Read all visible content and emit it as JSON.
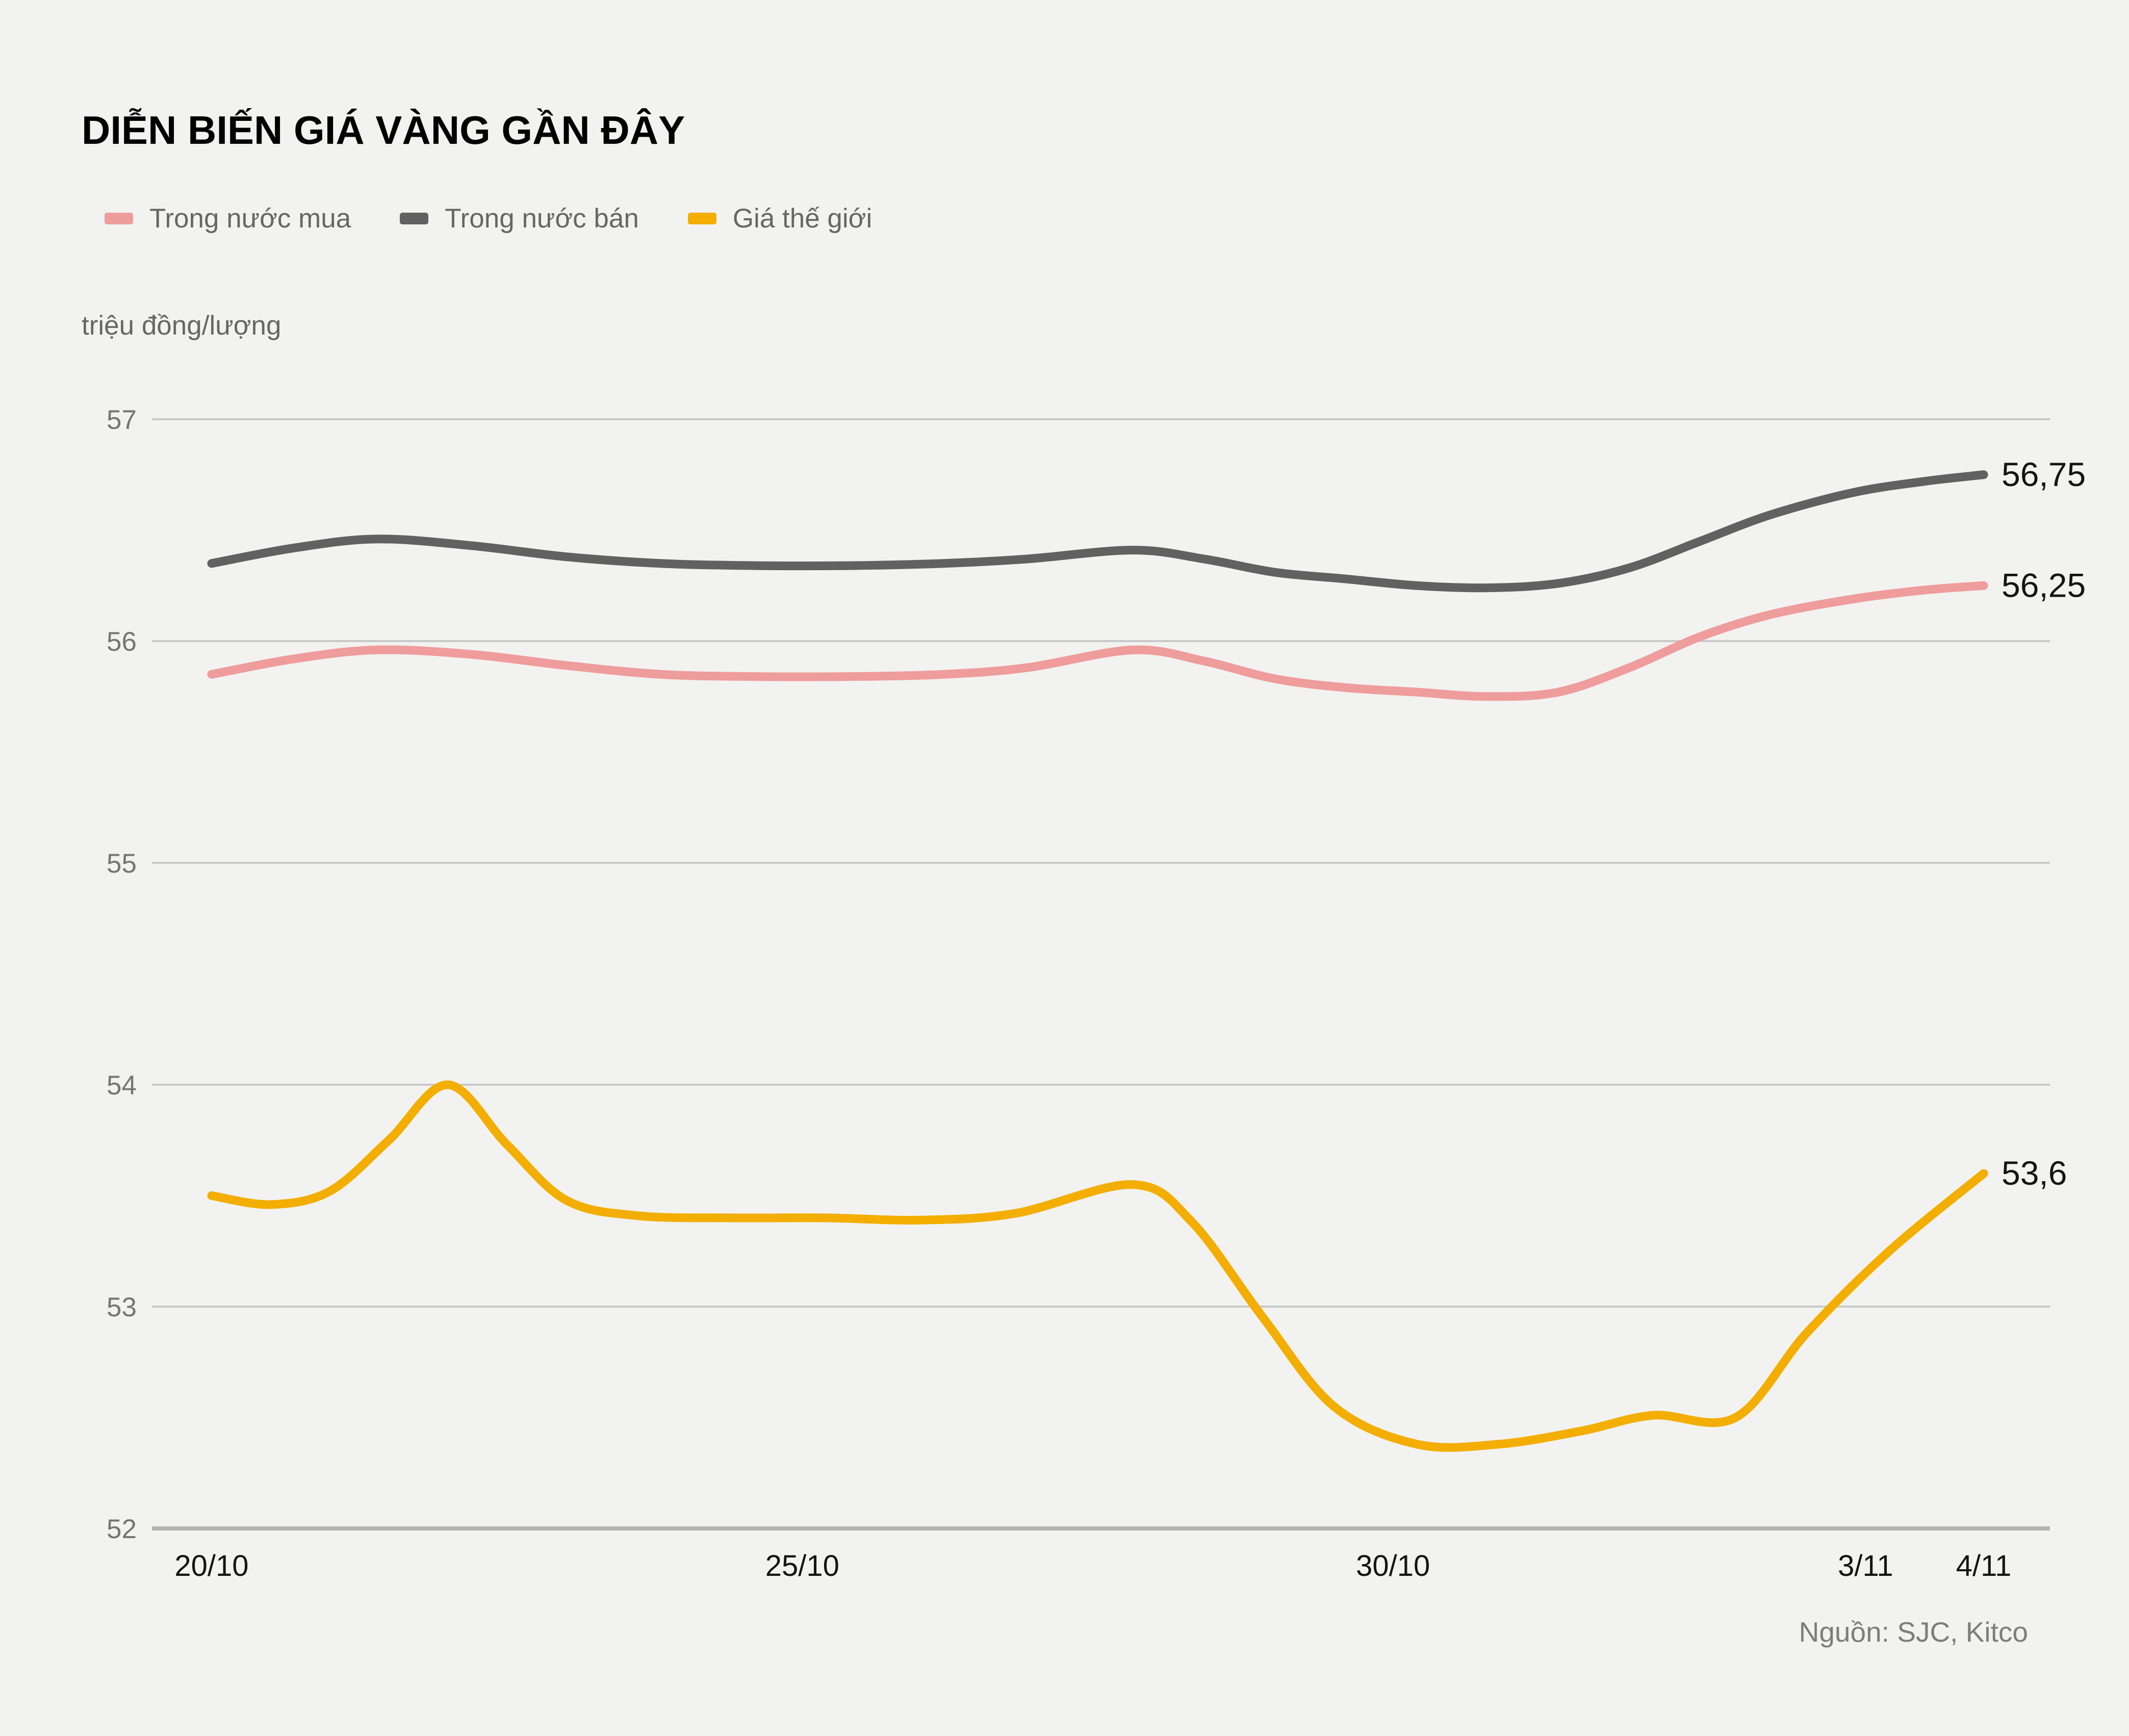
{
  "title": "DIỄN BIẾN GIÁ VÀNG GẦN ĐÂY",
  "unit_label": "triệu đồng/lượng",
  "source": "Nguồn: SJC, Kitco",
  "colors": {
    "background": "#f2f2f1",
    "gridline": "#c9c9c9",
    "axis_line": "#b3b3b3",
    "title_text": "#000000",
    "legend_text": "#666666",
    "y_tick_text": "#757575",
    "x_tick_text": "#141414",
    "end_label_text": "#141414",
    "source_text": "#7d7d7d",
    "series_mua": "#ef9c9c",
    "series_ban": "#616161",
    "series_world": "#f3ae00"
  },
  "legend": [
    {
      "label": "Trong nước mua",
      "color": "#ef9c9c"
    },
    {
      "label": "Trong nước bán",
      "color": "#616161"
    },
    {
      "label": "Giá thế giới",
      "color": "#f3ae00"
    }
  ],
  "chart_data": {
    "type": "line",
    "title": "DIỄN BIẾN GIÁ VÀNG GẦN ĐÂY",
    "xlabel": "",
    "ylabel": "triệu đồng/lượng",
    "ylim": [
      52,
      57
    ],
    "y_ticks": [
      57,
      56,
      55,
      54,
      53,
      52
    ],
    "x_ticks": [
      {
        "label": "20/10",
        "day": 0
      },
      {
        "label": "25/10",
        "day": 5
      },
      {
        "label": "30/10",
        "day": 10
      },
      {
        "label": "3/11",
        "day": 14
      },
      {
        "label": "4/11",
        "day": 15
      }
    ],
    "x_range_days": [
      0,
      15
    ],
    "grid": "horizontal",
    "legend_position": "top-left",
    "series": [
      {
        "name": "Trong nước bán",
        "color": "#616161",
        "end_label": "56,75",
        "end_value": 56.75,
        "points": [
          [
            0,
            56.35
          ],
          [
            0.7,
            56.42
          ],
          [
            1.4,
            56.46
          ],
          [
            2.2,
            56.43
          ],
          [
            3.0,
            56.38
          ],
          [
            3.8,
            56.35
          ],
          [
            4.6,
            56.34
          ],
          [
            5.4,
            56.34
          ],
          [
            6.2,
            56.35
          ],
          [
            6.9,
            56.37
          ],
          [
            7.8,
            56.41
          ],
          [
            8.4,
            56.37
          ],
          [
            9.0,
            56.31
          ],
          [
            9.6,
            56.28
          ],
          [
            10.2,
            56.25
          ],
          [
            10.8,
            56.24
          ],
          [
            11.4,
            56.26
          ],
          [
            12.0,
            56.33
          ],
          [
            12.6,
            56.45
          ],
          [
            13.2,
            56.57
          ],
          [
            13.9,
            56.67
          ],
          [
            14.5,
            56.72
          ],
          [
            15,
            56.75
          ]
        ]
      },
      {
        "name": "Trong nước mua",
        "color": "#ef9c9c",
        "end_label": "56,25",
        "end_value": 56.25,
        "points": [
          [
            0,
            55.85
          ],
          [
            0.7,
            55.92
          ],
          [
            1.4,
            55.96
          ],
          [
            2.2,
            55.94
          ],
          [
            3.0,
            55.89
          ],
          [
            3.8,
            55.85
          ],
          [
            4.6,
            55.84
          ],
          [
            5.4,
            55.84
          ],
          [
            6.2,
            55.85
          ],
          [
            6.9,
            55.88
          ],
          [
            7.8,
            55.96
          ],
          [
            8.4,
            55.91
          ],
          [
            9.0,
            55.83
          ],
          [
            9.6,
            55.79
          ],
          [
            10.2,
            55.77
          ],
          [
            10.8,
            55.75
          ],
          [
            11.4,
            55.77
          ],
          [
            12.0,
            55.88
          ],
          [
            12.6,
            56.02
          ],
          [
            13.2,
            56.12
          ],
          [
            13.9,
            56.19
          ],
          [
            14.5,
            56.23
          ],
          [
            15,
            56.25
          ]
        ]
      },
      {
        "name": "Giá thế giới",
        "color": "#f3ae00",
        "end_label": "53,6",
        "end_value": 53.6,
        "points": [
          [
            0,
            53.5
          ],
          [
            0.5,
            53.46
          ],
          [
            1.0,
            53.52
          ],
          [
            1.5,
            53.75
          ],
          [
            2.0,
            54.0
          ],
          [
            2.5,
            53.73
          ],
          [
            3.0,
            53.48
          ],
          [
            3.6,
            53.41
          ],
          [
            4.4,
            53.4
          ],
          [
            5.2,
            53.4
          ],
          [
            6.0,
            53.39
          ],
          [
            6.8,
            53.42
          ],
          [
            7.8,
            53.55
          ],
          [
            8.3,
            53.38
          ],
          [
            8.9,
            52.95
          ],
          [
            9.5,
            52.55
          ],
          [
            10.2,
            52.38
          ],
          [
            10.9,
            52.38
          ],
          [
            11.6,
            52.44
          ],
          [
            12.2,
            52.51
          ],
          [
            12.9,
            52.5
          ],
          [
            13.5,
            52.88
          ],
          [
            14.2,
            53.25
          ],
          [
            15,
            53.6
          ]
        ]
      }
    ]
  }
}
